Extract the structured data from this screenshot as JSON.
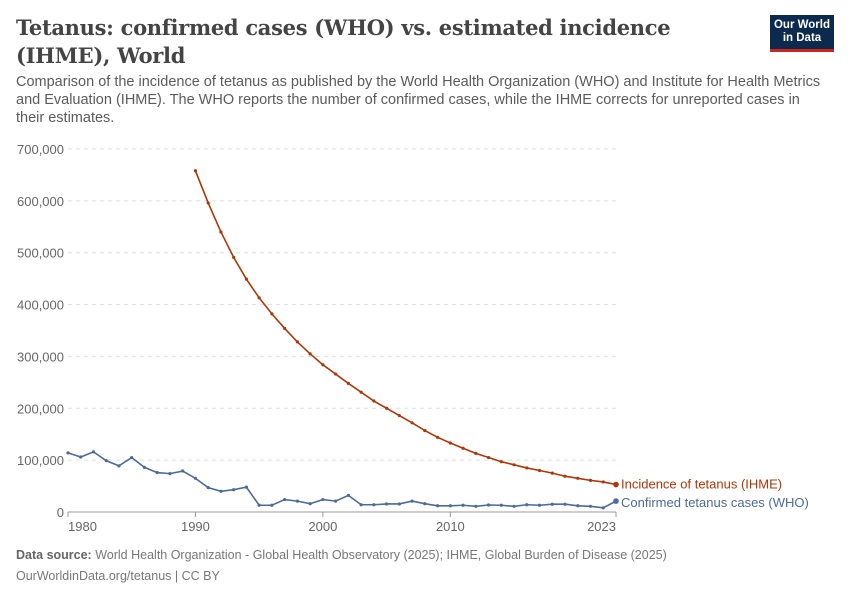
{
  "title": "Tetanus: confirmed cases (WHO) vs. estimated incidence (IHME), World",
  "subtitle": "Comparison of the incidence of tetanus as published by the World Health Organization (WHO) and Institute for Health Metrics and Evaluation (IHME). The WHO reports the number of confirmed cases, while the IHME corrects for unreported cases in their estimates.",
  "logo": {
    "line1": "Our World",
    "line2": "in Data"
  },
  "footer": {
    "source_label": "Data source:",
    "source": "World Health Organization - Global Health Observatory (2025); IHME, Global Burden of Disease (2025)",
    "url": "OurWorldinData.org/tetanus | CC BY"
  },
  "chart_data": {
    "type": "line",
    "ylim": [
      0,
      700000
    ],
    "xlim": [
      1980,
      2023
    ],
    "grid": true,
    "legend": "right-end labels",
    "yticks": [
      0,
      100000,
      200000,
      300000,
      400000,
      500000,
      600000,
      700000
    ],
    "ytick_labels": [
      "0",
      "100,000",
      "200,000",
      "300,000",
      "400,000",
      "500,000",
      "600,000",
      "700,000"
    ],
    "xticks": [
      1980,
      1990,
      2000,
      2010,
      2023
    ],
    "xtick_labels": [
      "1980",
      "1990",
      "2000",
      "2010",
      "2023"
    ],
    "series": [
      {
        "name": "Incidence of tetanus (IHME)",
        "color": "#b13507",
        "x": [
          1990,
          1991,
          1992,
          1993,
          1994,
          1995,
          1996,
          1997,
          1998,
          1999,
          2000,
          2001,
          2002,
          2003,
          2004,
          2005,
          2006,
          2007,
          2008,
          2009,
          2010,
          2011,
          2012,
          2013,
          2014,
          2015,
          2016,
          2017,
          2018,
          2019,
          2020,
          2021,
          2022,
          2023
        ],
        "values": [
          658000,
          596000,
          540000,
          491000,
          449000,
          413000,
          382000,
          354000,
          328000,
          305000,
          284000,
          266000,
          248000,
          231000,
          214000,
          200000,
          186000,
          172000,
          157000,
          144000,
          133000,
          123000,
          113000,
          105000,
          97000,
          91000,
          85000,
          80000,
          75000,
          69000,
          65000,
          61000,
          58000,
          53000
        ]
      },
      {
        "name": "Confirmed tetanus cases (WHO)",
        "color": "#4c6a9c",
        "x": [
          1980,
          1981,
          1982,
          1983,
          1984,
          1985,
          1986,
          1987,
          1988,
          1989,
          1990,
          1991,
          1992,
          1993,
          1994,
          1995,
          1996,
          1997,
          1998,
          1999,
          2000,
          2001,
          2002,
          2003,
          2004,
          2005,
          2006,
          2007,
          2008,
          2009,
          2010,
          2011,
          2012,
          2013,
          2014,
          2015,
          2016,
          2017,
          2018,
          2019,
          2020,
          2021,
          2022,
          2023
        ],
        "values": [
          114000,
          106000,
          116000,
          99000,
          89000,
          105000,
          86000,
          76000,
          74000,
          79000,
          65000,
          47000,
          40000,
          43000,
          48000,
          13000,
          13000,
          24000,
          21000,
          16000,
          24000,
          21000,
          32000,
          14000,
          14000,
          15500,
          15500,
          21000,
          16000,
          12000,
          12000,
          13000,
          11000,
          13500,
          13000,
          11000,
          14000,
          13000,
          15000,
          15000,
          12000,
          11000,
          8000,
          21000
        ]
      }
    ]
  }
}
